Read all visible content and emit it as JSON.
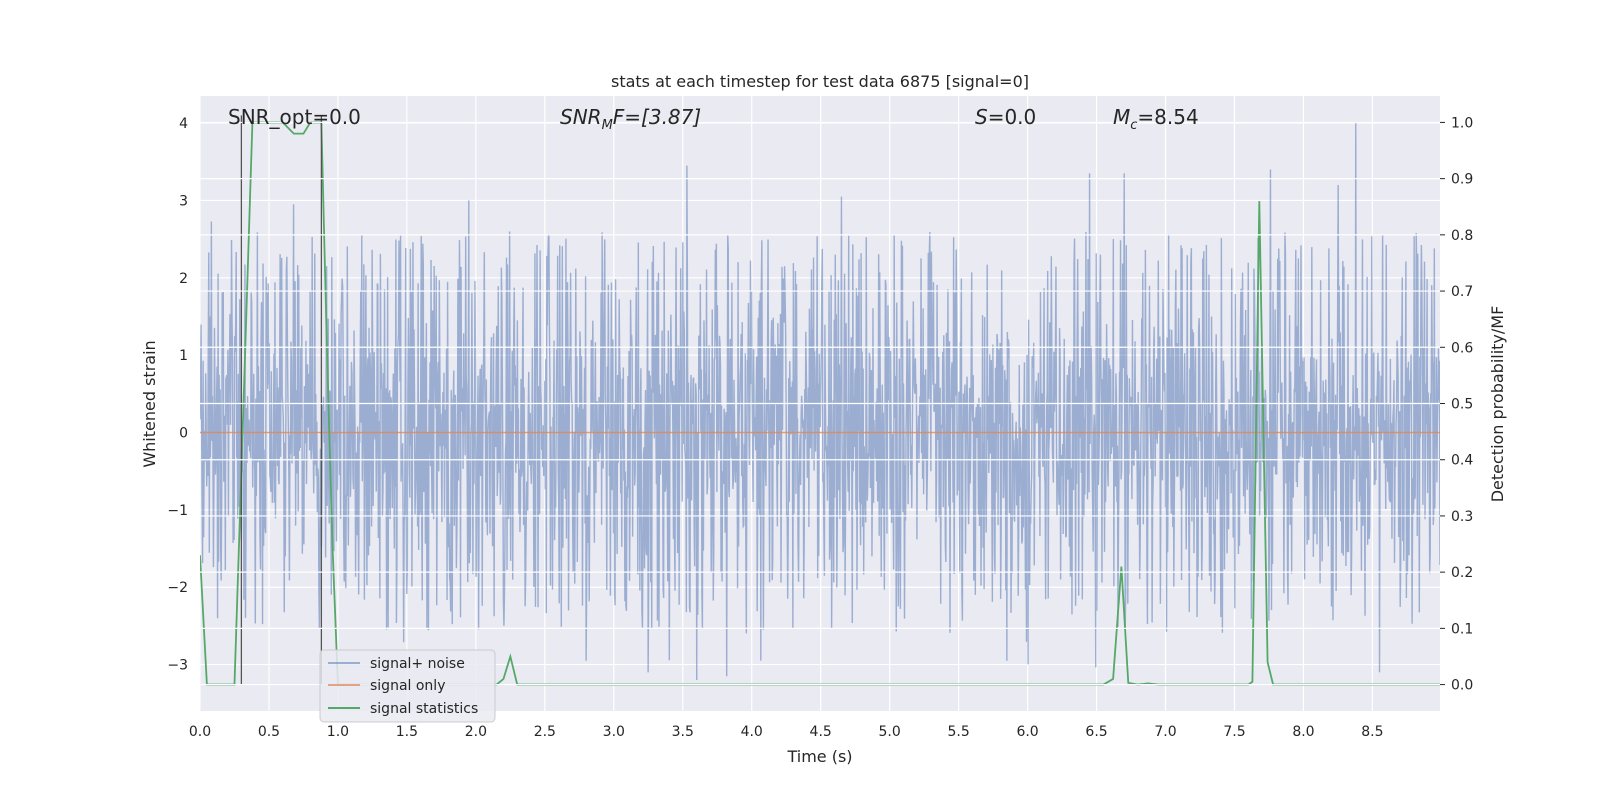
{
  "chart_data": {
    "type": "line",
    "title": "stats at each timestep for test data 6875 [signal=0]",
    "xlabel": "Time (s)",
    "ylabel_left": "Whitened strain",
    "ylabel_right": "Detection probability/MF",
    "xlim": [
      0.0,
      8.99
    ],
    "ylim_left": [
      -3.6,
      4.35
    ],
    "ylim_right": [
      -0.047,
      1.047
    ],
    "grid": true,
    "x_ticks": [
      "0.0",
      "0.5",
      "1.0",
      "1.5",
      "2.0",
      "2.5",
      "3.0",
      "3.5",
      "4.0",
      "4.5",
      "5.0",
      "5.5",
      "6.0",
      "6.5",
      "7.0",
      "7.5",
      "8.0",
      "8.5"
    ],
    "y_left_ticks": [
      "4",
      "3",
      "2",
      "1",
      "0",
      "−1",
      "−2",
      "−3"
    ],
    "y_right_ticks": [
      "1.0",
      "0.9",
      "0.8",
      "0.7",
      "0.6",
      "0.5",
      "0.4",
      "0.3",
      "0.2",
      "0.1",
      "0.0"
    ],
    "annotations": {
      "snr_opt": "SNR_opt=0.0",
      "snr_mf_main": "SNR",
      "snr_mf_sub": "M",
      "snr_mf_rest": "F=[3.87]",
      "s_label": "S",
      "s_value": "=0.0",
      "mc_label": "M",
      "mc_sub": "c",
      "mc_value": "=8.54"
    },
    "legend": {
      "placement": "lower-left",
      "entries": [
        "signal+ noise",
        "signal only",
        "signal statistics"
      ]
    },
    "vlines_x": [
      0.3,
      0.88
    ],
    "series": [
      {
        "name": "signal+ noise",
        "axis": "left",
        "style": "dense-noise",
        "color": "#4c72b0",
        "core_amplitude": 1.1,
        "typical_peak_range": [
          1.8,
          2.6
        ],
        "notable_peaks": [
          {
            "x": 3.53,
            "y": 3.45
          },
          {
            "x": 6.7,
            "y": 3.35
          },
          {
            "x": 7.76,
            "y": 3.4
          },
          {
            "x": 8.38,
            "y": 4.0
          },
          {
            "x": 8.25,
            "y": 3.2
          },
          {
            "x": 6.45,
            "y": 3.35
          },
          {
            "x": 0.68,
            "y": 2.95
          },
          {
            "x": 1.95,
            "y": 3.0
          },
          {
            "x": 4.65,
            "y": 3.05
          },
          {
            "x": 3.6,
            "y": -3.2
          },
          {
            "x": 3.82,
            "y": -3.15
          },
          {
            "x": 3.25,
            "y": -3.1
          },
          {
            "x": 5.85,
            "y": -2.95
          },
          {
            "x": 8.55,
            "y": -3.1
          },
          {
            "x": 2.8,
            "y": -2.95
          }
        ]
      },
      {
        "name": "signal only",
        "axis": "left",
        "color": "#dd8452",
        "x": [
          0.0,
          8.99
        ],
        "y": [
          0.0,
          0.0
        ]
      },
      {
        "name": "signal statistics",
        "axis": "right",
        "color": "#55a868",
        "x": [
          0.0,
          0.05,
          0.25,
          0.3,
          0.38,
          0.45,
          0.6,
          0.68,
          0.75,
          0.8,
          0.88,
          0.92,
          0.96,
          1.0,
          2.15,
          2.2,
          2.25,
          2.3,
          6.55,
          6.62,
          6.68,
          6.73,
          6.8,
          6.87,
          6.95,
          7.6,
          7.63,
          7.68,
          7.74,
          7.78,
          7.85,
          8.99
        ],
        "y": [
          0.23,
          0.0,
          0.0,
          0.38,
          1.0,
          1.0,
          1.0,
          0.98,
          0.98,
          1.0,
          1.0,
          0.6,
          0.25,
          0.0,
          0.0,
          0.01,
          0.05,
          0.0,
          0.0,
          0.01,
          0.21,
          0.003,
          0.0,
          0.002,
          0.0,
          0.0,
          0.005,
          0.86,
          0.04,
          0.0,
          0.0,
          0.0
        ]
      }
    ]
  }
}
